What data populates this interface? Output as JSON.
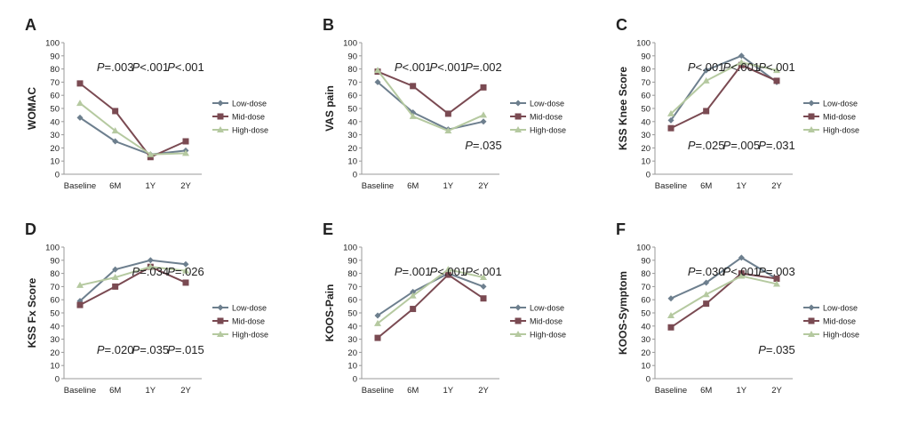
{
  "colors": {
    "low": "#6d7f8e",
    "mid": "#7a4a52",
    "high": "#b5c9a0",
    "axis": "#999999",
    "text": "#222222"
  },
  "chart_data": [
    {
      "letter": "A",
      "type": "line",
      "ylabel": "WOMAC",
      "categories": [
        "Baseline",
        "6M",
        "1Y",
        "2Y"
      ],
      "ylim": [
        0,
        100
      ],
      "yticks": [
        0,
        10,
        20,
        30,
        40,
        50,
        60,
        70,
        80,
        90,
        100
      ],
      "legend": [
        "Low-dose",
        "Mid-dose",
        "High-dose"
      ],
      "legend_position": "right",
      "series": [
        {
          "name": "Low-dose",
          "key": "low",
          "marker": "diamond",
          "values": [
            43,
            25,
            15,
            18
          ]
        },
        {
          "name": "Mid-dose",
          "key": "mid",
          "marker": "square",
          "values": [
            69,
            48,
            13,
            25
          ]
        },
        {
          "name": "High-dose",
          "key": "high",
          "marker": "triangle",
          "values": [
            54,
            33,
            15,
            16
          ]
        }
      ],
      "annotations_top": [
        {
          "p": "P",
          "t": "=.003",
          "cat": 1
        },
        {
          "p": "P",
          "t": "<.001",
          "cat": 2
        },
        {
          "p": "P",
          "t": "<.001",
          "cat": 3
        }
      ],
      "annotations_bottom": []
    },
    {
      "letter": "B",
      "type": "line",
      "ylabel": "VAS pain",
      "categories": [
        "Baseline",
        "6M",
        "1Y",
        "2Y"
      ],
      "ylim": [
        0,
        100
      ],
      "yticks": [
        0,
        10,
        20,
        30,
        40,
        50,
        60,
        70,
        80,
        90,
        100
      ],
      "legend": [
        "Low-dose",
        "Mid-dose",
        "High-dose"
      ],
      "legend_position": "right",
      "series": [
        {
          "name": "Low-dose",
          "key": "low",
          "marker": "diamond",
          "values": [
            70,
            47,
            34,
            40
          ]
        },
        {
          "name": "Mid-dose",
          "key": "mid",
          "marker": "square",
          "values": [
            78,
            67,
            46,
            66
          ]
        },
        {
          "name": "High-dose",
          "key": "high",
          "marker": "triangle",
          "values": [
            79,
            44,
            33,
            45
          ]
        }
      ],
      "annotations_top": [
        {
          "p": "P",
          "t": "<.001",
          "cat": 1
        },
        {
          "p": "P",
          "t": "<.001",
          "cat": 2
        },
        {
          "p": "P",
          "t": "=.002",
          "cat": 3
        }
      ],
      "annotations_bottom": [
        {
          "p": "P",
          "t": "=.035",
          "cat": 3
        }
      ]
    },
    {
      "letter": "C",
      "type": "line",
      "ylabel": "KSS Knee Score",
      "categories": [
        "Baseline",
        "6M",
        "1Y",
        "2Y"
      ],
      "ylim": [
        0,
        100
      ],
      "yticks": [
        0,
        10,
        20,
        30,
        40,
        50,
        60,
        70,
        80,
        90,
        100
      ],
      "legend": [
        "Low-dose",
        "Mid-dose",
        "High-dose"
      ],
      "legend_position": "right",
      "series": [
        {
          "name": "Low-dose",
          "key": "low",
          "marker": "diamond",
          "values": [
            41,
            79,
            90,
            70
          ]
        },
        {
          "name": "Mid-dose",
          "key": "mid",
          "marker": "square",
          "values": [
            35,
            48,
            83,
            71
          ]
        },
        {
          "name": "High-dose",
          "key": "high",
          "marker": "triangle",
          "values": [
            46,
            71,
            85,
            79
          ]
        }
      ],
      "annotations_top": [
        {
          "p": "P",
          "t": "<.001",
          "cat": 1
        },
        {
          "p": "P",
          "t": "<.001",
          "cat": 2
        },
        {
          "p": "P",
          "t": "<.001",
          "cat": 3
        }
      ],
      "annotations_bottom": [
        {
          "p": "P",
          "t": "=.025",
          "cat": 1
        },
        {
          "p": "P",
          "t": "=.005",
          "cat": 2
        },
        {
          "p": "P",
          "t": "=.031",
          "cat": 3
        }
      ]
    },
    {
      "letter": "D",
      "type": "line",
      "ylabel": "KSS Fx Score",
      "categories": [
        "Baseline",
        "6M",
        "1Y",
        "2Y"
      ],
      "ylim": [
        0,
        100
      ],
      "yticks": [
        0,
        10,
        20,
        30,
        40,
        50,
        60,
        70,
        80,
        90,
        100
      ],
      "legend": [
        "Low-dose",
        "Mid-dose",
        "High-dose"
      ],
      "legend_position": "right",
      "series": [
        {
          "name": "Low-dose",
          "key": "low",
          "marker": "diamond",
          "values": [
            59,
            83,
            90,
            87
          ]
        },
        {
          "name": "Mid-dose",
          "key": "mid",
          "marker": "square",
          "values": [
            56,
            70,
            85,
            73
          ]
        },
        {
          "name": "High-dose",
          "key": "high",
          "marker": "triangle",
          "values": [
            71,
            77,
            85,
            82
          ]
        }
      ],
      "annotations_top": [
        {
          "p": "P",
          "t": "=.034",
          "cat": 2
        },
        {
          "p": "P",
          "t": "=.026",
          "cat": 3
        }
      ],
      "annotations_bottom": [
        {
          "p": "P",
          "t": "=.020",
          "cat": 1
        },
        {
          "p": "P",
          "t": "=.035",
          "cat": 2
        },
        {
          "p": "P",
          "t": "=.015",
          "cat": 3
        }
      ]
    },
    {
      "letter": "E",
      "type": "line",
      "ylabel": "KOOS-Pain",
      "categories": [
        "Baseline",
        "6M",
        "1Y",
        "2Y"
      ],
      "ylim": [
        0,
        100
      ],
      "yticks": [
        0,
        10,
        20,
        30,
        40,
        50,
        60,
        70,
        80,
        90,
        100
      ],
      "legend": [
        "Low-dose",
        "Mid-dose",
        "High-dose"
      ],
      "legend_position": "right",
      "series": [
        {
          "name": "Low-dose",
          "key": "low",
          "marker": "diamond",
          "values": [
            48,
            66,
            80,
            70
          ]
        },
        {
          "name": "Mid-dose",
          "key": "mid",
          "marker": "square",
          "values": [
            31,
            53,
            79,
            61
          ]
        },
        {
          "name": "High-dose",
          "key": "high",
          "marker": "triangle",
          "values": [
            42,
            63,
            83,
            77
          ]
        }
      ],
      "annotations_top": [
        {
          "p": "P",
          "t": "=.001",
          "cat": 1
        },
        {
          "p": "P",
          "t": "<.001",
          "cat": 2
        },
        {
          "p": "P",
          "t": "<.001",
          "cat": 3
        }
      ],
      "annotations_bottom": []
    },
    {
      "letter": "F",
      "type": "line",
      "ylabel": "KOOS-Symptom",
      "categories": [
        "Baseline",
        "6M",
        "1Y",
        "2Y"
      ],
      "ylim": [
        0,
        100
      ],
      "yticks": [
        0,
        10,
        20,
        30,
        40,
        50,
        60,
        70,
        80,
        90,
        100
      ],
      "legend": [
        "Low-dose",
        "Mid-dose",
        "High-dose"
      ],
      "legend_position": "right",
      "series": [
        {
          "name": "Low-dose",
          "key": "low",
          "marker": "diamond",
          "values": [
            61,
            73,
            92,
            76
          ]
        },
        {
          "name": "Mid-dose",
          "key": "mid",
          "marker": "square",
          "values": [
            39,
            57,
            80,
            76
          ]
        },
        {
          "name": "High-dose",
          "key": "high",
          "marker": "triangle",
          "values": [
            48,
            64,
            78,
            72
          ]
        }
      ],
      "annotations_top": [
        {
          "p": "P",
          "t": "=.030",
          "cat": 1
        },
        {
          "p": "P",
          "t": "<.001",
          "cat": 2
        },
        {
          "p": "P",
          "t": "=.003",
          "cat": 3
        }
      ],
      "annotations_bottom": [
        {
          "p": "P",
          "t": "=.035",
          "cat": 3
        }
      ]
    }
  ]
}
